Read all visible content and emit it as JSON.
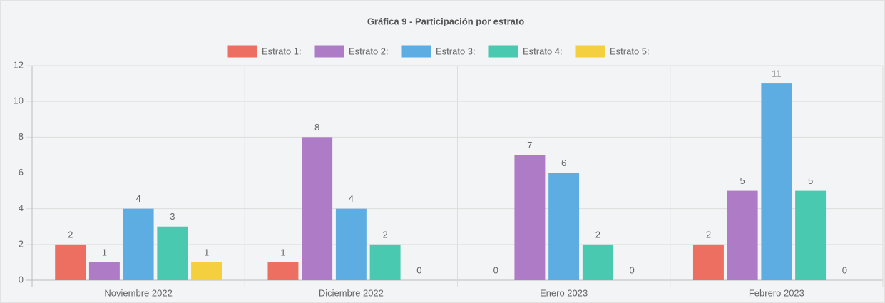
{
  "chart_data": {
    "type": "bar",
    "title": "Gráfica 9 - Participación por estrato",
    "categories": [
      "Noviembre 2022",
      "Diciembre 2022",
      "Enero 2023",
      "Febrero 2023"
    ],
    "series": [
      {
        "name": "Estrato 1:",
        "color": "#ec6f62",
        "values": [
          2,
          1,
          0,
          2
        ]
      },
      {
        "name": "Estrato 2:",
        "color": "#ae7bc6",
        "values": [
          1,
          8,
          7,
          5
        ]
      },
      {
        "name": "Estrato 3:",
        "color": "#5dade2",
        "values": [
          4,
          4,
          6,
          11
        ]
      },
      {
        "name": "Estrato 4:",
        "color": "#48c9b0",
        "values": [
          3,
          2,
          2,
          5
        ]
      },
      {
        "name": "Estrato 5:",
        "color": "#f4d03f",
        "values": [
          1,
          0,
          0,
          0
        ]
      }
    ],
    "ylim": [
      0,
      12
    ],
    "yticks": [
      0,
      2,
      4,
      6,
      8,
      10,
      12
    ],
    "grid": true,
    "legend": "top"
  }
}
